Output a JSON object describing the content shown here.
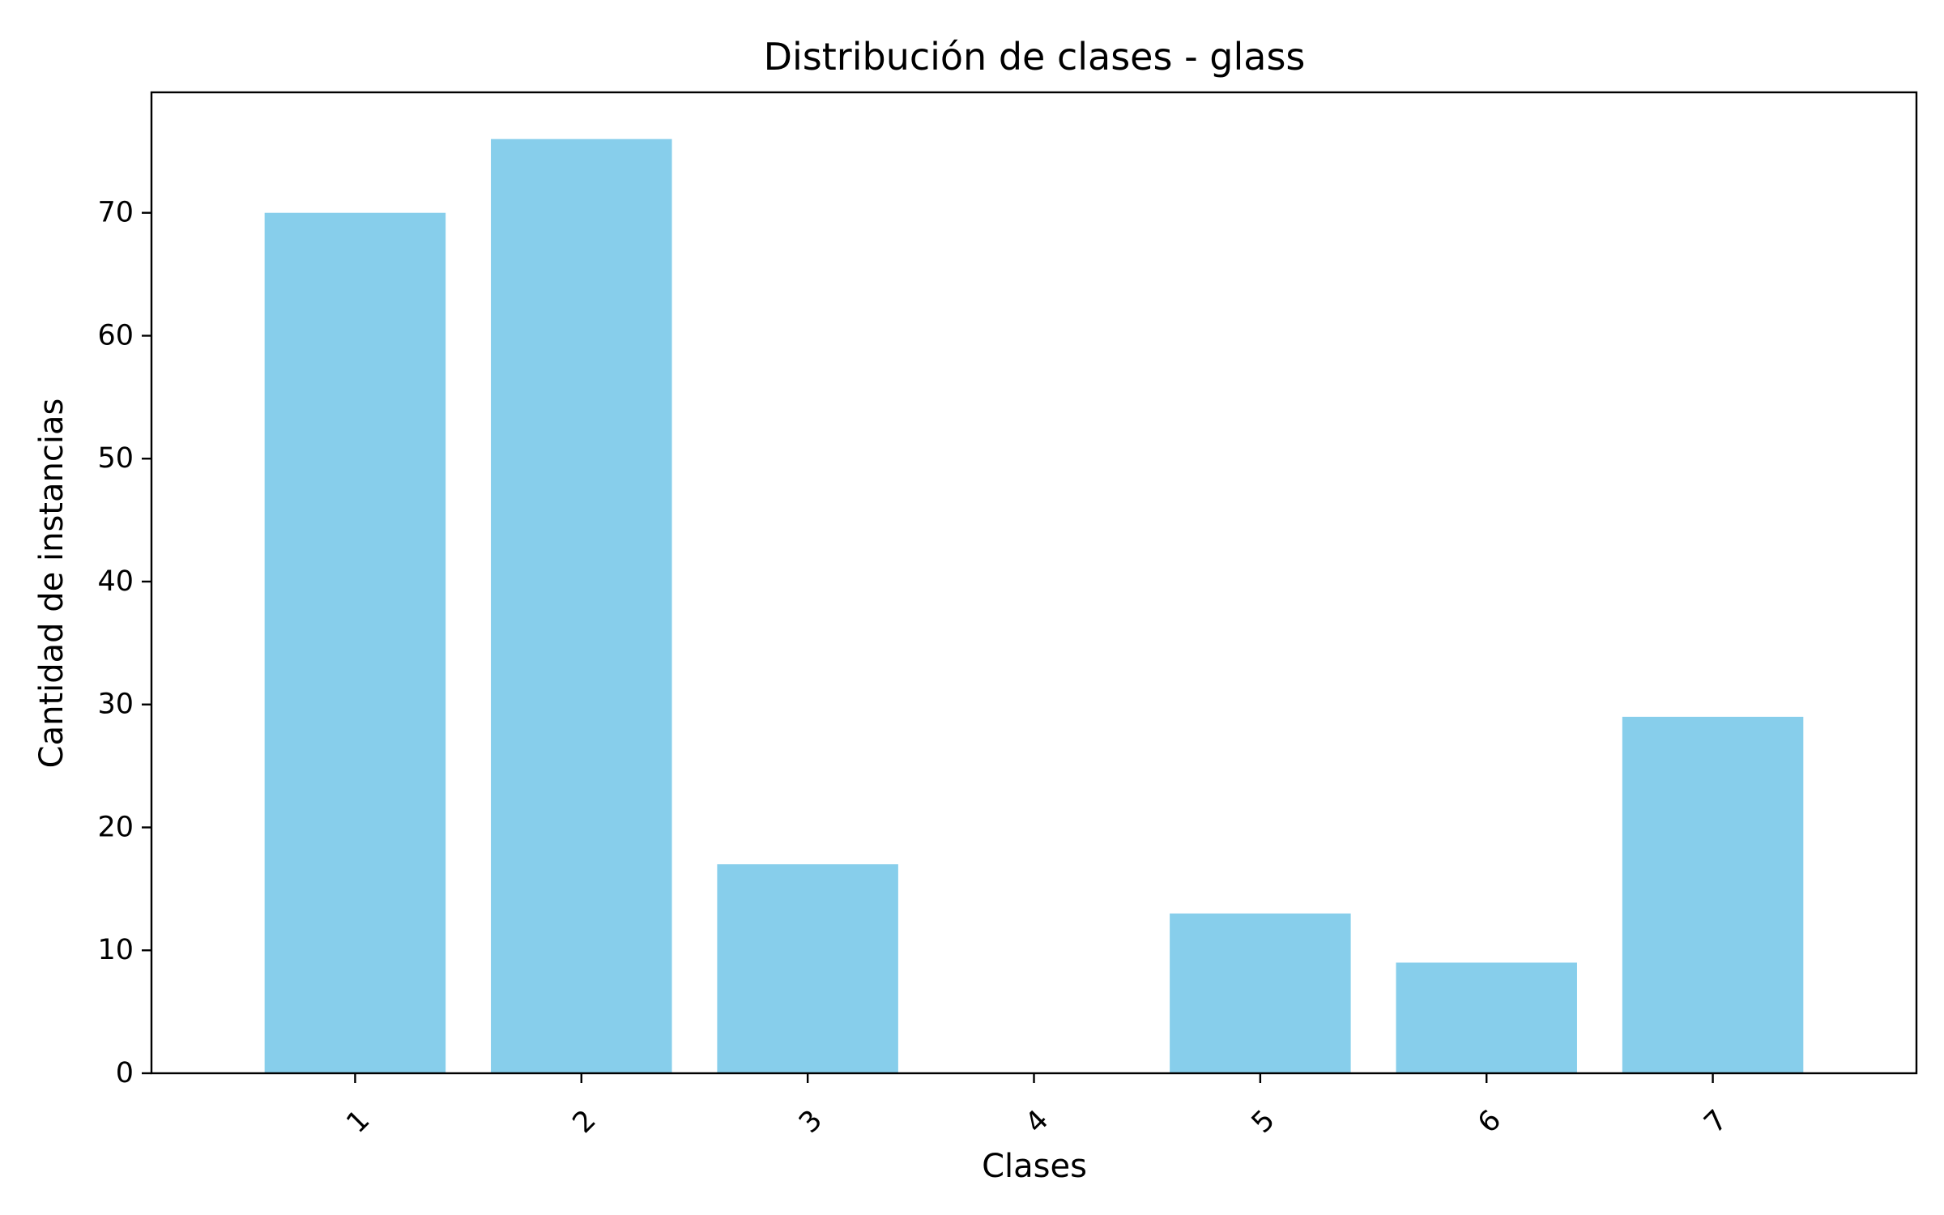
{
  "chart_data": {
    "type": "bar",
    "title": "Distribución de clases - glass",
    "xlabel": "Clases",
    "ylabel": "Cantidad de instancias",
    "categories": [
      "1",
      "2",
      "3",
      "4",
      "5",
      "6",
      "7"
    ],
    "values": [
      70,
      76,
      17,
      0,
      13,
      9,
      29
    ],
    "ylim": [
      0,
      79.8
    ],
    "yticks": [
      "0",
      "10",
      "20",
      "30",
      "40",
      "50",
      "60",
      "70"
    ],
    "grid": false,
    "legend": "none",
    "bar_color": "#87ceeb",
    "axis_color": "#000000",
    "xtick_rotation": -45
  }
}
